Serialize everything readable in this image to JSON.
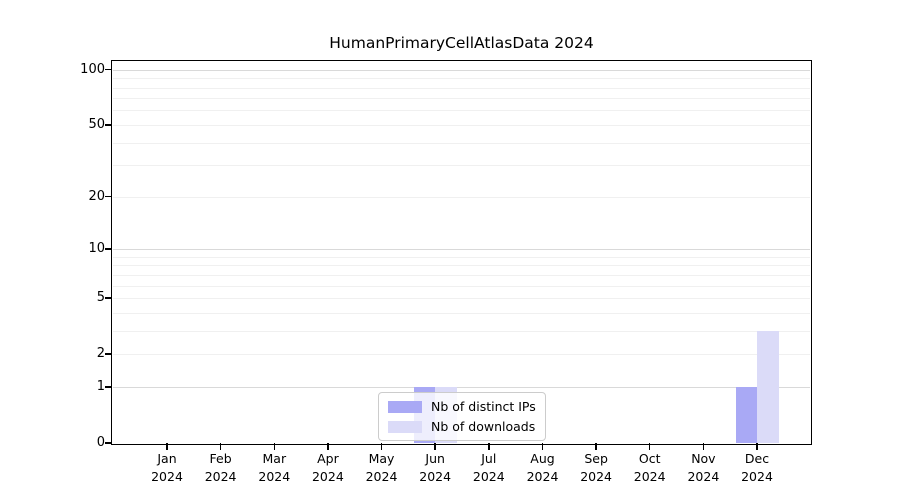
{
  "chart_data": {
    "type": "bar",
    "title": "HumanPrimaryCellAtlasData 2024",
    "x_categories": [
      "Jan",
      "Feb",
      "Mar",
      "Apr",
      "May",
      "Jun",
      "Jul",
      "Aug",
      "Sep",
      "Oct",
      "Nov",
      "Dec"
    ],
    "x_sub_label": "2024",
    "series": [
      {
        "name": "Nb of distinct IPs",
        "color": "#a9a9f5",
        "values": [
          0,
          0,
          0,
          0,
          0,
          1,
          0,
          0,
          0,
          0,
          0,
          1
        ]
      },
      {
        "name": "Nb of downloads",
        "color": "#dbdbf8",
        "values": [
          0,
          0,
          0,
          0,
          0,
          1,
          0,
          0,
          0,
          0,
          0,
          3
        ]
      }
    ],
    "y_axis": {
      "scale": "log1p",
      "ticks": [
        0,
        1,
        2,
        5,
        10,
        20,
        50,
        100
      ],
      "max_display": 110,
      "grid_major": [
        1,
        10,
        100
      ],
      "grid_minor": [
        2,
        3,
        4,
        5,
        6,
        7,
        8,
        9,
        20,
        30,
        40,
        50,
        60,
        70,
        80,
        90
      ]
    },
    "legend": {
      "position": "bottom-center"
    },
    "grid": "horizontal-only",
    "xlabel": "",
    "ylabel": ""
  }
}
